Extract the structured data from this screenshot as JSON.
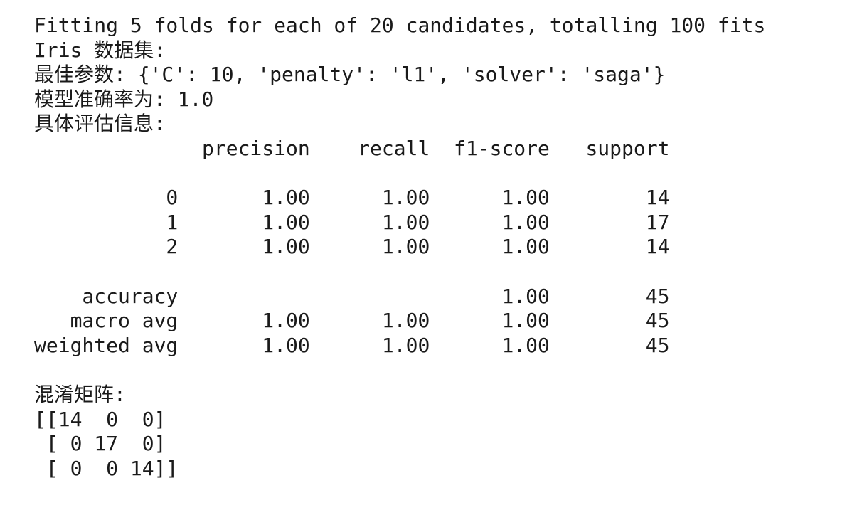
{
  "output": {
    "fit_line": "Fitting 5 folds for each of 20 candidates, totalling 100 fits",
    "dataset_line": "Iris 数据集:",
    "best_params_line": "最佳参数: {'C': 10, 'penalty': 'l1', 'solver': 'saga'}",
    "accuracy_line": "模型准确率为: 1.0",
    "report_title": "具体评估信息:",
    "report": {
      "header": "              precision    recall  f1-score   support",
      "blank_1": "",
      "row_0": "           0       1.00      1.00      1.00        14",
      "row_1": "           1       1.00      1.00      1.00        17",
      "row_2": "           2       1.00      1.00      1.00        14",
      "blank_2": "",
      "accuracy": "    accuracy                           1.00        45",
      "macro_avg": "   macro avg       1.00      1.00      1.00        45",
      "weighted_avg": "weighted avg       1.00      1.00      1.00        45"
    },
    "blank_3": "",
    "confusion_title": "混淆矩阵:",
    "confusion_rows": [
      "[[14  0  0]",
      " [ 0 17  0]",
      " [ 0  0 14]]"
    ]
  }
}
